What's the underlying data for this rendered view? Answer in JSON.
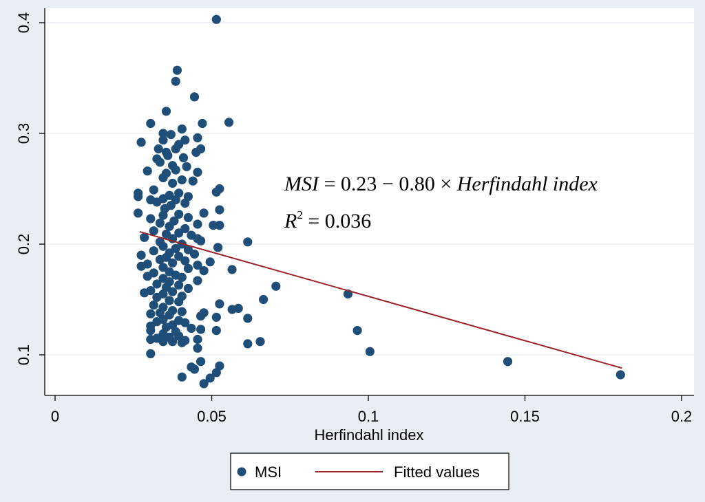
{
  "chart_data": {
    "type": "scatter",
    "title": "",
    "xlabel": "Herfindahl index",
    "ylabel": "",
    "xlim": [
      0,
      0.2
    ],
    "ylim": [
      0.07,
      0.41
    ],
    "x_ticks": [
      0,
      0.05,
      0.1,
      0.15,
      0.2
    ],
    "x_tick_labels": [
      "0",
      "0.05",
      "0.1",
      "0.15",
      "0.2"
    ],
    "y_ticks": [
      0.1,
      0.2,
      0.3,
      0.4
    ],
    "y_tick_labels": [
      "0.1",
      "0.2",
      "0.3",
      "0.4"
    ],
    "grid": "horizontal",
    "colors": {
      "points": "#1f4e79",
      "line": "#9b2226",
      "plot_bg": "#ffffff",
      "outer_bg": "#e8eef3"
    },
    "annotation": {
      "lhs": "MSI",
      "rhs_start": " = 0.23 − 0.80 × ",
      "rhs_end": "Herfindahl index",
      "r2_label": "R",
      "r2_exp": "2",
      "r2_value": " = 0.036"
    },
    "legend": {
      "placement": "bottom-center",
      "scatter_label": "MSI",
      "line_label": "Fitted values"
    },
    "fitted_line": {
      "intercept": 0.2328,
      "slope": -0.8,
      "x": [
        0.027,
        0.181
      ]
    },
    "series": [
      {
        "name": "MSI",
        "points": [
          [
            0.0515,
            0.403
          ],
          [
            0.039,
            0.357
          ],
          [
            0.0385,
            0.347
          ],
          [
            0.0445,
            0.333
          ],
          [
            0.0355,
            0.32
          ],
          [
            0.0555,
            0.31
          ],
          [
            0.0305,
            0.309
          ],
          [
            0.047,
            0.309
          ],
          [
            0.0405,
            0.304
          ],
          [
            0.0345,
            0.3
          ],
          [
            0.037,
            0.299
          ],
          [
            0.0455,
            0.296
          ],
          [
            0.0415,
            0.294
          ],
          [
            0.0275,
            0.292
          ],
          [
            0.0345,
            0.294
          ],
          [
            0.0395,
            0.29
          ],
          [
            0.033,
            0.286
          ],
          [
            0.0465,
            0.286
          ],
          [
            0.0385,
            0.286
          ],
          [
            0.045,
            0.283
          ],
          [
            0.0355,
            0.283
          ],
          [
            0.036,
            0.28
          ],
          [
            0.041,
            0.278
          ],
          [
            0.0325,
            0.277
          ],
          [
            0.0335,
            0.274
          ],
          [
            0.0375,
            0.271
          ],
          [
            0.042,
            0.27
          ],
          [
            0.0385,
            0.267
          ],
          [
            0.0295,
            0.266
          ],
          [
            0.0455,
            0.265
          ],
          [
            0.0355,
            0.264
          ],
          [
            0.0345,
            0.26
          ],
          [
            0.0405,
            0.258
          ],
          [
            0.044,
            0.257
          ],
          [
            0.0375,
            0.255
          ],
          [
            0.0525,
            0.25
          ],
          [
            0.0315,
            0.249
          ],
          [
            0.0515,
            0.247
          ],
          [
            0.0395,
            0.246
          ],
          [
            0.0365,
            0.244
          ],
          [
            0.0265,
            0.246
          ],
          [
            0.0425,
            0.243
          ],
          [
            0.0265,
            0.243
          ],
          [
            0.0345,
            0.241
          ],
          [
            0.0385,
            0.24
          ],
          [
            0.0305,
            0.24
          ],
          [
            0.0325,
            0.238
          ],
          [
            0.0415,
            0.237
          ],
          [
            0.037,
            0.235
          ],
          [
            0.035,
            0.232
          ],
          [
            0.0525,
            0.231
          ],
          [
            0.0475,
            0.228
          ],
          [
            0.0265,
            0.228
          ],
          [
            0.0395,
            0.227
          ],
          [
            0.0345,
            0.226
          ],
          [
            0.0425,
            0.224
          ],
          [
            0.0305,
            0.223
          ],
          [
            0.038,
            0.221
          ],
          [
            0.0335,
            0.219
          ],
          [
            0.0455,
            0.218
          ],
          [
            0.0505,
            0.217
          ],
          [
            0.0525,
            0.217
          ],
          [
            0.0365,
            0.216
          ],
          [
            0.0415,
            0.214
          ],
          [
            0.0315,
            0.212
          ],
          [
            0.0395,
            0.21
          ],
          [
            0.0355,
            0.209
          ],
          [
            0.0435,
            0.208
          ],
          [
            0.0285,
            0.206
          ],
          [
            0.0375,
            0.205
          ],
          [
            0.0455,
            0.205
          ],
          [
            0.0465,
            0.203
          ],
          [
            0.0615,
            0.202
          ],
          [
            0.0335,
            0.202
          ],
          [
            0.0405,
            0.2
          ],
          [
            0.0345,
            0.198
          ],
          [
            0.052,
            0.197
          ],
          [
            0.0385,
            0.196
          ],
          [
            0.0425,
            0.195
          ],
          [
            0.0315,
            0.194
          ],
          [
            0.0365,
            0.192
          ],
          [
            0.0445,
            0.191
          ],
          [
            0.0275,
            0.19
          ],
          [
            0.0395,
            0.189
          ],
          [
            0.0355,
            0.188
          ],
          [
            0.0335,
            0.186
          ],
          [
            0.0415,
            0.185
          ],
          [
            0.0495,
            0.184
          ],
          [
            0.0375,
            0.183
          ],
          [
            0.0295,
            0.182
          ],
          [
            0.0455,
            0.181
          ],
          [
            0.0275,
            0.18
          ],
          [
            0.0345,
            0.179
          ],
          [
            0.0425,
            0.178
          ],
          [
            0.0565,
            0.177
          ],
          [
            0.0475,
            0.176
          ],
          [
            0.0365,
            0.175
          ],
          [
            0.0315,
            0.174
          ],
          [
            0.0385,
            0.172
          ],
          [
            0.0295,
            0.171
          ],
          [
            0.0405,
            0.17
          ],
          [
            0.0345,
            0.169
          ],
          [
            0.0455,
            0.167
          ],
          [
            0.0365,
            0.166
          ],
          [
            0.0325,
            0.164
          ],
          [
            0.0395,
            0.163
          ],
          [
            0.0705,
            0.162
          ],
          [
            0.0355,
            0.161
          ],
          [
            0.0425,
            0.16
          ],
          [
            0.0305,
            0.158
          ],
          [
            0.0375,
            0.157
          ],
          [
            0.0285,
            0.156
          ],
          [
            0.0345,
            0.155
          ],
          [
            0.0935,
            0.155
          ],
          [
            0.0405,
            0.153
          ],
          [
            0.0325,
            0.152
          ],
          [
            0.0665,
            0.15
          ],
          [
            0.0365,
            0.149
          ],
          [
            0.0395,
            0.148
          ],
          [
            0.0525,
            0.146
          ],
          [
            0.0315,
            0.145
          ],
          [
            0.0345,
            0.143
          ],
          [
            0.0585,
            0.142
          ],
          [
            0.0565,
            0.141
          ],
          [
            0.0375,
            0.14
          ],
          [
            0.0405,
            0.139
          ],
          [
            0.0335,
            0.138
          ],
          [
            0.0475,
            0.138
          ],
          [
            0.0305,
            0.137
          ],
          [
            0.0365,
            0.136
          ],
          [
            0.0465,
            0.135
          ],
          [
            0.0515,
            0.134
          ],
          [
            0.0615,
            0.133
          ],
          [
            0.0345,
            0.132
          ],
          [
            0.0395,
            0.131
          ],
          [
            0.0325,
            0.13
          ],
          [
            0.0415,
            0.129
          ],
          [
            0.0375,
            0.127
          ],
          [
            0.0305,
            0.126
          ],
          [
            0.0355,
            0.125
          ],
          [
            0.0435,
            0.124
          ],
          [
            0.0465,
            0.123
          ],
          [
            0.0515,
            0.122
          ],
          [
            0.0965,
            0.122
          ],
          [
            0.0305,
            0.122
          ],
          [
            0.0385,
            0.121
          ],
          [
            0.0345,
            0.119
          ],
          [
            0.0395,
            0.117
          ],
          [
            0.0365,
            0.116
          ],
          [
            0.0325,
            0.115
          ],
          [
            0.0455,
            0.114
          ],
          [
            0.0305,
            0.114
          ],
          [
            0.0415,
            0.113
          ],
          [
            0.0375,
            0.112
          ],
          [
            0.0655,
            0.112
          ],
          [
            0.0345,
            0.112
          ],
          [
            0.0405,
            0.111
          ],
          [
            0.0615,
            0.11
          ],
          [
            0.0455,
            0.106
          ],
          [
            0.1005,
            0.103
          ],
          [
            0.0305,
            0.101
          ],
          [
            0.0465,
            0.094
          ],
          [
            0.1445,
            0.094
          ],
          [
            0.0525,
            0.09
          ],
          [
            0.0435,
            0.089
          ],
          [
            0.0445,
            0.087
          ],
          [
            0.0515,
            0.084
          ],
          [
            0.1805,
            0.082
          ],
          [
            0.0405,
            0.08
          ],
          [
            0.0495,
            0.079
          ],
          [
            0.0475,
            0.074
          ]
        ]
      }
    ]
  }
}
